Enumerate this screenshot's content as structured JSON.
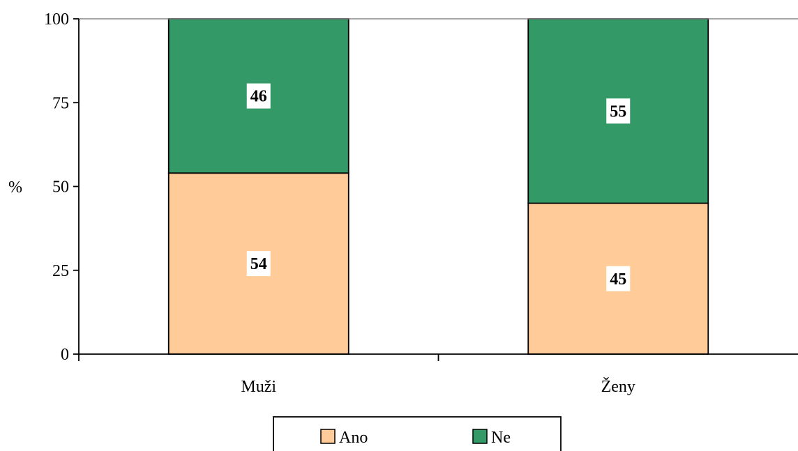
{
  "chart_data": {
    "type": "bar",
    "stacked": true,
    "title": "",
    "xlabel": "",
    "ylabel": "%",
    "ylim": [
      0,
      100
    ],
    "yticks": [
      0,
      25,
      50,
      75,
      100
    ],
    "categories": [
      "Muži",
      "Ženy"
    ],
    "series": [
      {
        "name": "Ano",
        "values": [
          54,
          45
        ],
        "color": "#FFCC99"
      },
      {
        "name": "Ne",
        "values": [
          46,
          55
        ],
        "color": "#339966"
      }
    ],
    "grid": false,
    "legend": "bottom"
  }
}
